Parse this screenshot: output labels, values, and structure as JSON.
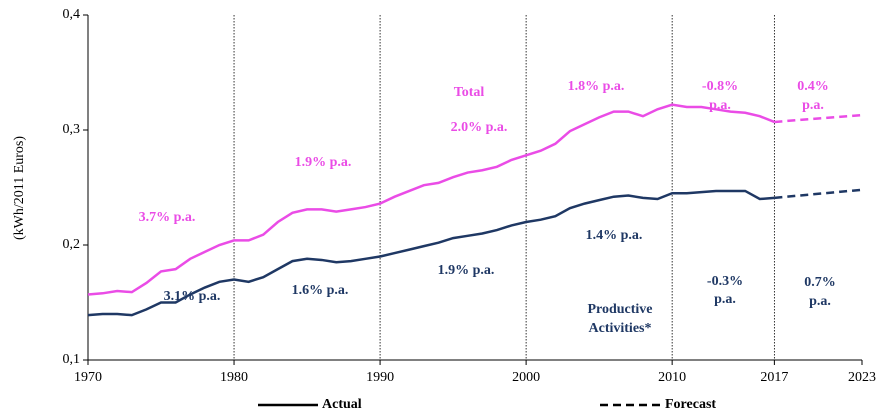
{
  "chart_data": {
    "type": "line",
    "y_label": "(kWh/2011 Euros)",
    "x": [
      1970,
      1971,
      1972,
      1973,
      1974,
      1975,
      1976,
      1977,
      1978,
      1979,
      1980,
      1981,
      1982,
      1983,
      1984,
      1985,
      1986,
      1987,
      1988,
      1989,
      1990,
      1991,
      1992,
      1993,
      1994,
      1995,
      1996,
      1997,
      1998,
      1999,
      2000,
      2001,
      2002,
      2003,
      2004,
      2005,
      2006,
      2007,
      2008,
      2009,
      2010,
      2011,
      2012,
      2013,
      2014,
      2015,
      2016,
      2017
    ],
    "forecast_x": [
      2017,
      2023
    ],
    "series": [
      {
        "name": "Total",
        "color": "#ea4ce6",
        "values": [
          0.157,
          0.158,
          0.16,
          0.159,
          0.167,
          0.177,
          0.179,
          0.188,
          0.194,
          0.2,
          0.204,
          0.204,
          0.209,
          0.22,
          0.228,
          0.231,
          0.231,
          0.229,
          0.231,
          0.233,
          0.236,
          0.242,
          0.247,
          0.252,
          0.254,
          0.259,
          0.263,
          0.265,
          0.268,
          0.274,
          0.278,
          0.282,
          0.288,
          0.299,
          0.305,
          0.311,
          0.316,
          0.316,
          0.312,
          0.318,
          0.322,
          0.32,
          0.32,
          0.318,
          0.316,
          0.315,
          0.312,
          0.307
        ],
        "forecast_values": [
          0.307,
          0.313
        ]
      },
      {
        "name": "Productive Activities*",
        "color": "#1f3864",
        "values": [
          0.139,
          0.14,
          0.14,
          0.139,
          0.144,
          0.15,
          0.15,
          0.157,
          0.163,
          0.168,
          0.17,
          0.168,
          0.172,
          0.179,
          0.186,
          0.188,
          0.187,
          0.185,
          0.186,
          0.188,
          0.19,
          0.193,
          0.196,
          0.199,
          0.202,
          0.206,
          0.208,
          0.21,
          0.213,
          0.217,
          0.22,
          0.222,
          0.225,
          0.232,
          0.236,
          0.239,
          0.242,
          0.243,
          0.241,
          0.24,
          0.245,
          0.245,
          0.246,
          0.247,
          0.247,
          0.247,
          0.24,
          0.241
        ],
        "forecast_values": [
          0.241,
          0.248
        ]
      }
    ],
    "annotations": [
      {
        "text": "3.7% p.a.",
        "color": "#ea4ce6"
      },
      {
        "text": "3.1% p.a.",
        "color": "#1f3864"
      },
      {
        "text": "1.9% p.a.",
        "color": "#ea4ce6"
      },
      {
        "text": "1.6% p.a.",
        "color": "#1f3864"
      },
      {
        "text": "Total",
        "color": "#ea4ce6"
      },
      {
        "text": "2.0% p.a.",
        "color": "#ea4ce6"
      },
      {
        "text": "1.9% p.a.",
        "color": "#1f3864"
      },
      {
        "text": "1.8% p.a.",
        "color": "#ea4ce6"
      },
      {
        "text": "1.4% p.a.",
        "color": "#1f3864"
      },
      {
        "text": "Productive",
        "color": "#1f3864"
      },
      {
        "text": "Activities*",
        "color": "#1f3864"
      },
      {
        "text": "-0.8%",
        "color": "#ea4ce6"
      },
      {
        "text": "p.a.",
        "color": "#ea4ce6"
      },
      {
        "text": "0.4%",
        "color": "#ea4ce6"
      },
      {
        "text": "p.a.",
        "color": "#ea4ce6"
      },
      {
        "text": "-0.3%",
        "color": "#1f3864"
      },
      {
        "text": "p.a.",
        "color": "#1f3864"
      },
      {
        "text": "0.7%",
        "color": "#1f3864"
      },
      {
        "text": "p.a.",
        "color": "#1f3864"
      }
    ],
    "legend": {
      "actual": "Actual",
      "forecast": "Forecast"
    },
    "xlim": [
      1970,
      2023
    ],
    "xticks": [
      1970,
      1980,
      1990,
      2000,
      2010,
      2017,
      2023
    ],
    "xgrid": true,
    "ylim": [
      0.1,
      0.4
    ],
    "yticks": [
      {
        "value": 0.1,
        "label": "0,1"
      },
      {
        "value": 0.2,
        "label": "0,2"
      },
      {
        "value": 0.3,
        "label": "0,3"
      },
      {
        "value": 0.4,
        "label": "0,4"
      }
    ]
  }
}
